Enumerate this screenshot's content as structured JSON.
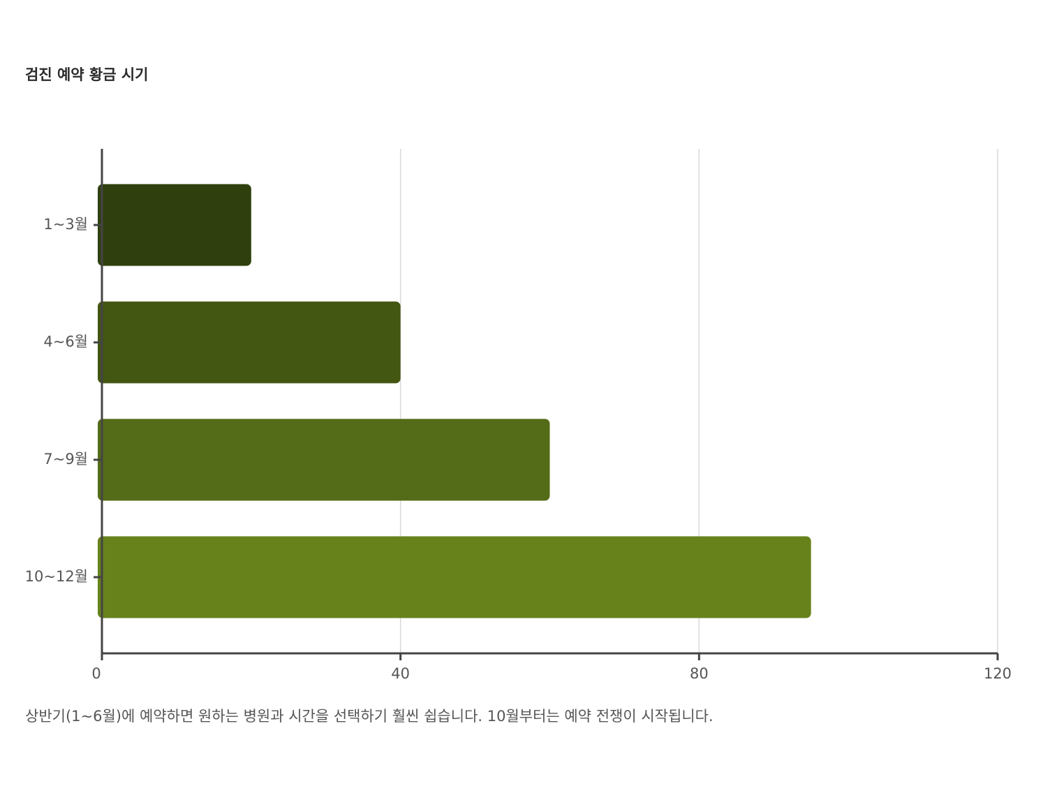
{
  "chart_data": {
    "type": "bar",
    "orientation": "horizontal",
    "title": "검진 예약 황금 시기",
    "categories": [
      "1~3월",
      "4~6월",
      "7~9월",
      "10~12월"
    ],
    "values": [
      20,
      40,
      60,
      95
    ],
    "colors": [
      "#2f400e",
      "#435612",
      "#546b17",
      "#67821b"
    ],
    "xlim": [
      0,
      120
    ],
    "xticks": [
      0,
      40,
      80,
      120
    ],
    "grid": true,
    "footnote": "상반기(1~6월)에 예약하면 원하는 병원과 시간을 선택하기 훨씬 쉽습니다. 10월부터는 예약 전쟁이 시작됩니다."
  }
}
